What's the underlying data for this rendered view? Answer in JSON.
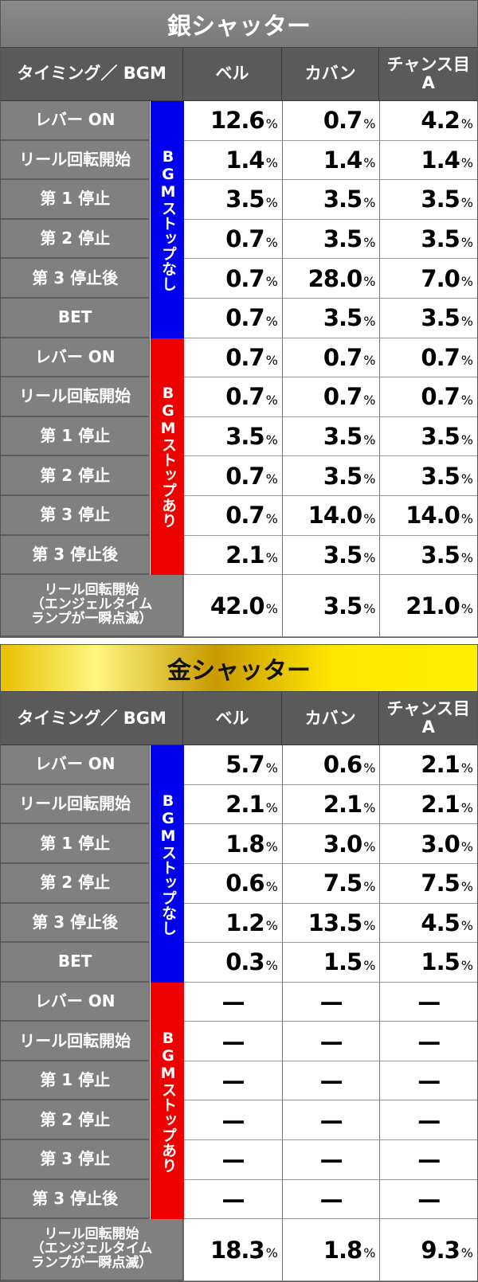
{
  "tables": [
    {
      "title": "銀シャッター",
      "headers": [
        "タイミング／ BGM",
        "ベル",
        "カバン",
        "チャンス目\nA"
      ],
      "groups": [
        "BGMストップなし",
        "BGMストップあり"
      ],
      "rows": [
        {
          "label": "レバー ON",
          "values": [
            "12.6",
            "0.7",
            "4.2"
          ]
        },
        {
          "label": "リール回転開始",
          "values": [
            "1.4",
            "1.4",
            "1.4"
          ]
        },
        {
          "label": "第 1 停止",
          "values": [
            "3.5",
            "3.5",
            "3.5"
          ]
        },
        {
          "label": "第 2 停止",
          "values": [
            "0.7",
            "3.5",
            "3.5"
          ]
        },
        {
          "label": "第 3 停止後",
          "values": [
            "0.7",
            "28.0",
            "7.0"
          ]
        },
        {
          "label": "BET",
          "values": [
            "0.7",
            "3.5",
            "3.5"
          ]
        },
        {
          "label": "レバー ON",
          "values": [
            "0.7",
            "0.7",
            "0.7"
          ]
        },
        {
          "label": "リール回転開始",
          "values": [
            "0.7",
            "0.7",
            "0.7"
          ]
        },
        {
          "label": "第 1 停止",
          "values": [
            "3.5",
            "3.5",
            "3.5"
          ]
        },
        {
          "label": "第 2 停止",
          "values": [
            "0.7",
            "3.5",
            "3.5"
          ]
        },
        {
          "label": "第 3 停止",
          "values": [
            "0.7",
            "14.0",
            "14.0"
          ]
        },
        {
          "label": "第 3 停止後",
          "values": [
            "2.1",
            "3.5",
            "3.5"
          ]
        },
        {
          "label": "リール回転開始\n（エンジェルタイム\nランプが一瞬点滅）",
          "values": [
            "42.0",
            "3.5",
            "21.0"
          ]
        }
      ]
    },
    {
      "title": "金シャッター",
      "headers": [
        "タイミング／ BGM",
        "ベル",
        "カバン",
        "チャンス目\nA"
      ],
      "groups": [
        "BGMストップなし",
        "BGMストップあり"
      ],
      "rows": [
        {
          "label": "レバー ON",
          "values": [
            "5.7",
            "0.6",
            "2.1"
          ]
        },
        {
          "label": "リール回転開始",
          "values": [
            "2.1",
            "2.1",
            "2.1"
          ]
        },
        {
          "label": "第 1 停止",
          "values": [
            "1.8",
            "3.0",
            "3.0"
          ]
        },
        {
          "label": "第 2 停止",
          "values": [
            "0.6",
            "7.5",
            "7.5"
          ]
        },
        {
          "label": "第 3 停止後",
          "values": [
            "1.2",
            "13.5",
            "4.5"
          ]
        },
        {
          "label": "BET",
          "values": [
            "0.3",
            "1.5",
            "1.5"
          ]
        },
        {
          "label": "レバー ON",
          "values": [
            "—",
            "—",
            "—"
          ]
        },
        {
          "label": "リール回転開始",
          "values": [
            "—",
            "—",
            "—"
          ]
        },
        {
          "label": "第 1 停止",
          "values": [
            "—",
            "—",
            "—"
          ]
        },
        {
          "label": "第 2 停止",
          "values": [
            "—",
            "—",
            "—"
          ]
        },
        {
          "label": "第 3 停止",
          "values": [
            "—",
            "—",
            "—"
          ]
        },
        {
          "label": "第 3 停止後",
          "values": [
            "—",
            "—",
            "—"
          ]
        },
        {
          "label": "リール回転開始\n（エンジェルタイム\nランプが一瞬点滅）",
          "values": [
            "18.3",
            "1.8",
            "9.3"
          ]
        }
      ]
    }
  ],
  "unit": "%",
  "colors": {
    "no_stop": "#0000ee",
    "stop": "#ee0000"
  }
}
